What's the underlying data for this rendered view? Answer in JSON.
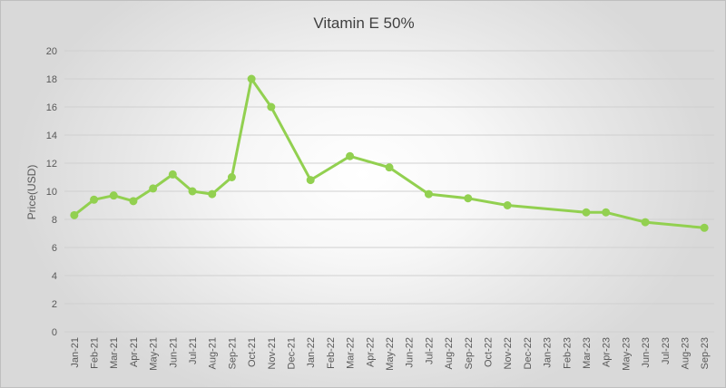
{
  "chart_data": {
    "type": "line",
    "title": "Vitamin E 50%",
    "xlabel": "",
    "ylabel": "Price(USD)",
    "ylim": [
      0,
      20
    ],
    "yticks": [
      0,
      2,
      4,
      6,
      8,
      10,
      12,
      14,
      16,
      18,
      20
    ],
    "categories": [
      "Jan-21",
      "Feb-21",
      "Mar-21",
      "Apr-21",
      "May-21",
      "Jun-21",
      "Jul-21",
      "Aug-21",
      "Sep-21",
      "Oct-21",
      "Nov-21",
      "Dec-21",
      "Jan-22",
      "Feb-22",
      "Mar-22",
      "Apr-22",
      "May-22",
      "Jun-22",
      "Jul-22",
      "Aug-22",
      "Sep-22",
      "Oct-22",
      "Nov-22",
      "Dec-22",
      "Jan-23",
      "Feb-23",
      "Mar-23",
      "Apr-23",
      "May-23",
      "Jun-23",
      "Jul-23",
      "Aug-23",
      "Sep-23"
    ],
    "grid": true,
    "legend": "none",
    "series": [
      {
        "name": "Vitamin E 50%",
        "color": "#92d050",
        "points": [
          {
            "x": "Jan-21",
            "y": 8.3
          },
          {
            "x": "Feb-21",
            "y": 9.4
          },
          {
            "x": "Mar-21",
            "y": 9.7
          },
          {
            "x": "Apr-21",
            "y": 9.3
          },
          {
            "x": "May-21",
            "y": 10.2
          },
          {
            "x": "Jun-21",
            "y": 11.2
          },
          {
            "x": "Jul-21",
            "y": 10.0
          },
          {
            "x": "Aug-21",
            "y": 9.8
          },
          {
            "x": "Sep-21",
            "y": 11.0
          },
          {
            "x": "Oct-21",
            "y": 18.0
          },
          {
            "x": "Nov-21",
            "y": 16.0
          },
          {
            "x": "Jan-22",
            "y": 10.8
          },
          {
            "x": "Mar-22",
            "y": 12.5
          },
          {
            "x": "May-22",
            "y": 11.7
          },
          {
            "x": "Jul-22",
            "y": 9.8
          },
          {
            "x": "Sep-22",
            "y": 9.5
          },
          {
            "x": "Nov-22",
            "y": 9.0
          },
          {
            "x": "Mar-23",
            "y": 8.5
          },
          {
            "x": "Apr-23",
            "y": 8.5
          },
          {
            "x": "Jun-23",
            "y": 7.8
          },
          {
            "x": "Sep-23",
            "y": 7.4
          }
        ]
      }
    ]
  }
}
